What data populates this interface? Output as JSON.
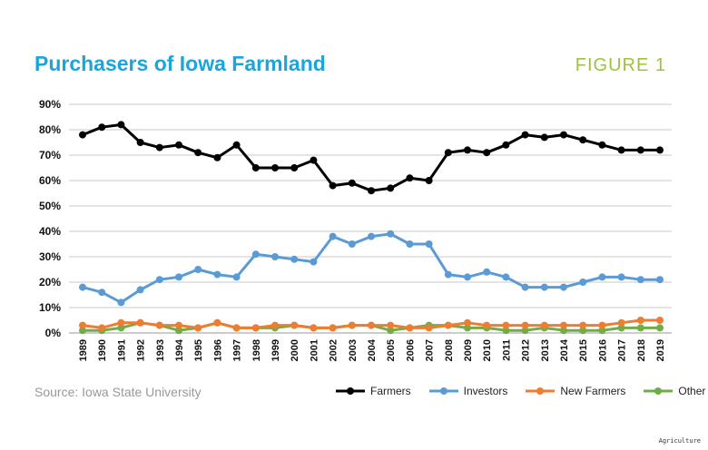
{
  "header": {
    "title": "Purchasers of Iowa Farmland",
    "figure": "FIGURE 1"
  },
  "footer": {
    "source": "Source: Iowa State University",
    "watermark": "Agriculture"
  },
  "chart_data": {
    "type": "line",
    "title": "Purchasers of Iowa Farmland",
    "xlabel": "",
    "ylabel": "",
    "ylim": [
      0,
      90
    ],
    "yticks": [
      "0%",
      "10%",
      "20%",
      "30%",
      "40%",
      "50%",
      "60%",
      "70%",
      "80%",
      "90%"
    ],
    "grid": true,
    "legend": "bottom-right",
    "x": [
      "1989",
      "1990",
      "1991",
      "1992",
      "1993",
      "1994",
      "1995",
      "1996",
      "1997",
      "1998",
      "1999",
      "2000",
      "2001",
      "2002",
      "2003",
      "2004",
      "2005",
      "2006",
      "2007",
      "2008",
      "2009",
      "2010",
      "2011",
      "2012",
      "2013",
      "2014",
      "2015",
      "2016",
      "2017",
      "2018",
      "2019"
    ],
    "series": [
      {
        "name": "Farmers",
        "color": "#000000",
        "values": [
          78,
          81,
          82,
          75,
          73,
          74,
          71,
          69,
          74,
          65,
          65,
          65,
          68,
          58,
          59,
          56,
          57,
          61,
          60,
          71,
          72,
          71,
          74,
          78,
          77,
          78,
          76,
          74,
          72,
          72,
          72
        ]
      },
      {
        "name": "Investors",
        "color": "#5b9bd5",
        "values": [
          18,
          16,
          12,
          17,
          21,
          22,
          25,
          23,
          22,
          31,
          30,
          29,
          28,
          38,
          35,
          38,
          39,
          35,
          35,
          23,
          22,
          24,
          22,
          18,
          18,
          18,
          20,
          22,
          22,
          21,
          21
        ]
      },
      {
        "name": "New Farmers",
        "color": "#ed7d31",
        "values": [
          3,
          2,
          4,
          4,
          3,
          3,
          2,
          4,
          2,
          2,
          3,
          3,
          2,
          2,
          3,
          3,
          3,
          2,
          2,
          3,
          4,
          3,
          3,
          3,
          3,
          3,
          3,
          3,
          4,
          5,
          5
        ]
      },
      {
        "name": "Other",
        "color": "#70ad47",
        "values": [
          1,
          1,
          2,
          4,
          3,
          1,
          2,
          4,
          2,
          2,
          2,
          3,
          2,
          2,
          3,
          3,
          1,
          2,
          3,
          3,
          2,
          2,
          1,
          1,
          2,
          1,
          1,
          1,
          2,
          2,
          2
        ]
      }
    ]
  }
}
